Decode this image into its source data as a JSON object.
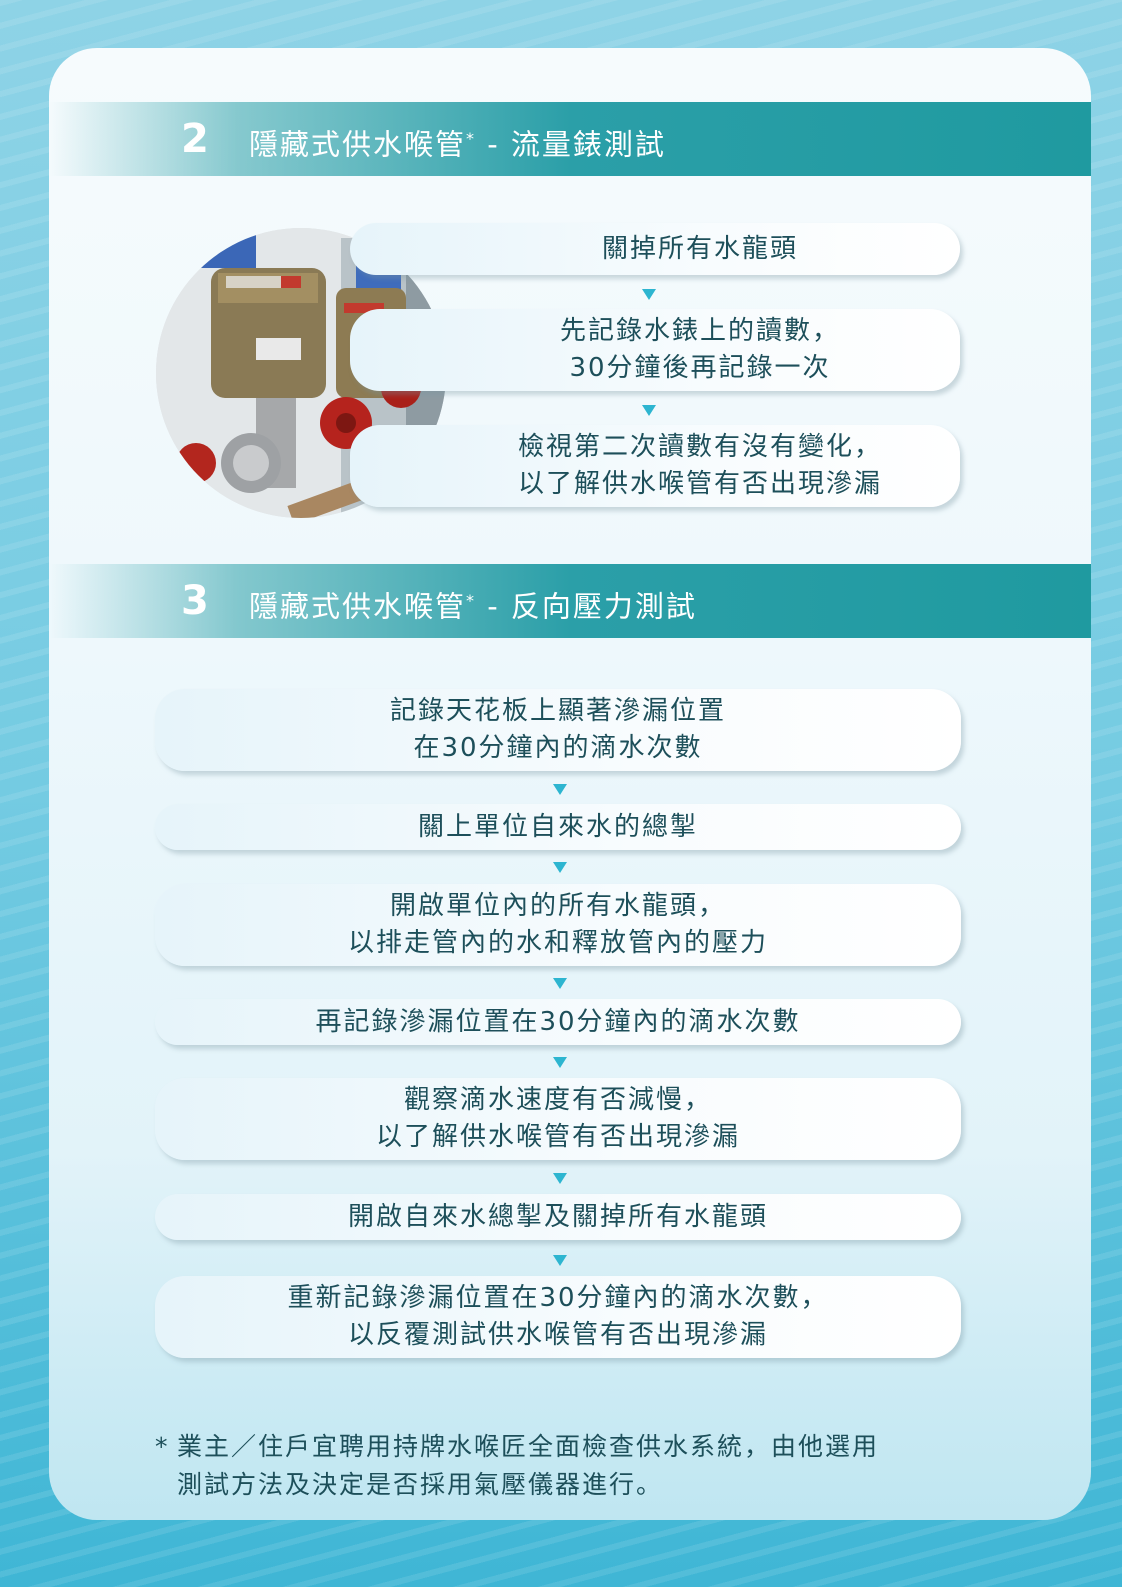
{
  "section2": {
    "number": "2",
    "title": "隱藏式供水喉管",
    "asterisk": "*",
    "subtitle": " - 流量錶測試",
    "steps": [
      {
        "lines": [
          "關掉所有水龍頭"
        ]
      },
      {
        "lines": [
          "先記錄水錶上的讀數，",
          "30分鐘後再記錄一次"
        ]
      },
      {
        "lines": [
          "檢視第二次讀數有沒有變化，",
          "以了解供水喉管有否出現滲漏"
        ]
      }
    ]
  },
  "section3": {
    "number": "3",
    "title": "隱藏式供水喉管",
    "asterisk": "*",
    "subtitle": " - 反向壓力測試",
    "steps": [
      {
        "lines": [
          "記錄天花板上顯著滲漏位置",
          "在30分鐘內的滴水次數"
        ]
      },
      {
        "lines": [
          "關上單位自來水的總掣"
        ]
      },
      {
        "lines": [
          "開啟單位內的所有水龍頭，",
          "以排走管內的水和釋放管內的壓力"
        ]
      },
      {
        "lines": [
          "再記錄滲漏位置在30分鐘內的滴水次數"
        ]
      },
      {
        "lines": [
          "觀察滴水速度有否減慢，",
          "以了解供水喉管有否出現滲漏"
        ]
      },
      {
        "lines": [
          "開啟自來水總掣及關掉所有水龍頭"
        ]
      },
      {
        "lines": [
          "重新記錄滲漏位置在30分鐘內的滴水次數，",
          "以反覆測試供水喉管有否出現滲漏"
        ]
      }
    ]
  },
  "footnote": {
    "star": "*",
    "lines": [
      "業主／住戶宜聘用持牌水喉匠全面檢查供水系統，由他選用",
      "測試方法及決定是否採用氣壓儀器進行。"
    ]
  },
  "colors": {
    "section_bar": "#2b9fa8",
    "arrow": "#2db5d0",
    "text": "#1d4f5a"
  }
}
